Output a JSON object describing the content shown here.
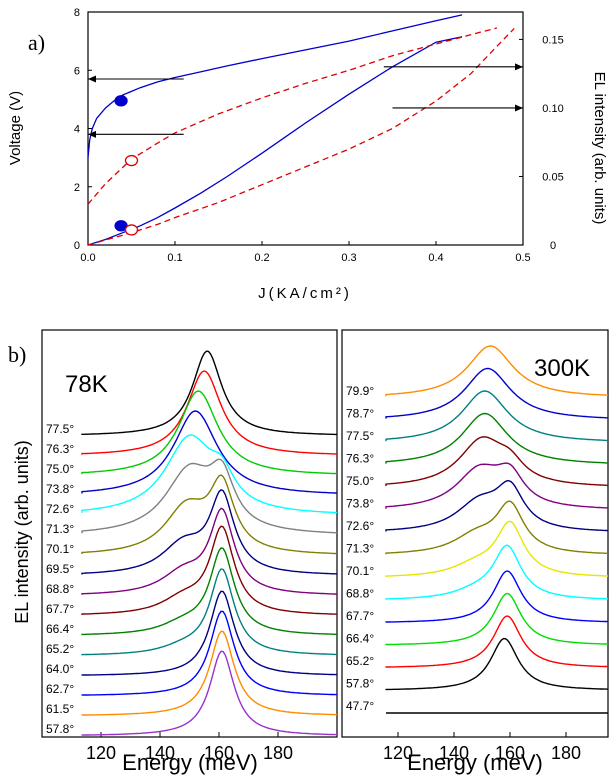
{
  "figure": {
    "panel_a_label": "a)",
    "panel_b_label": "b)"
  },
  "chart_data": [
    {
      "type": "line",
      "panel": "a",
      "xlabel": "J(KA/cm²)",
      "ylabel": "Voltage (V)",
      "y2label": "EL intensity (arb. units)",
      "xlim": [
        0,
        0.5
      ],
      "ylim": [
        0,
        8
      ],
      "y2lim": [
        0,
        0.17
      ],
      "xticks": [
        "0.0",
        "0.1",
        "0.2",
        "0.3",
        "0.4",
        "0.5"
      ],
      "yticks": [
        "0",
        "2",
        "4",
        "6",
        "8"
      ],
      "y2ticks": [
        "0",
        "0.05",
        "0.10",
        "0.15"
      ],
      "grid": false,
      "legend": "none",
      "series": [
        {
          "axis": "left",
          "color": "#0000cc",
          "dash": "solid",
          "x": [
            0,
            0.002,
            0.005,
            0.01,
            0.02,
            0.03,
            0.04,
            0.06,
            0.08,
            0.1,
            0.13,
            0.16,
            0.2,
            0.25,
            0.3,
            0.35,
            0.4,
            0.43
          ],
          "y": [
            3.0,
            3.6,
            4.0,
            4.35,
            4.7,
            4.95,
            5.15,
            5.4,
            5.6,
            5.75,
            5.95,
            6.15,
            6.4,
            6.7,
            7.0,
            7.35,
            7.7,
            7.9
          ]
        },
        {
          "axis": "right",
          "color": "#0000cc",
          "dash": "solid",
          "x": [
            0,
            0.02,
            0.04,
            0.06,
            0.08,
            0.1,
            0.13,
            0.16,
            0.2,
            0.25,
            0.3,
            0.35,
            0.4,
            0.43
          ],
          "y": [
            0.0,
            0.004,
            0.009,
            0.014,
            0.02,
            0.027,
            0.038,
            0.05,
            0.067,
            0.089,
            0.11,
            0.13,
            0.148,
            0.152
          ]
        },
        {
          "axis": "left",
          "color": "#dd0000",
          "dash": "dashed",
          "x": [
            0,
            0.02,
            0.05,
            0.08,
            0.1,
            0.15,
            0.2,
            0.25,
            0.3,
            0.35,
            0.4,
            0.45,
            0.47
          ],
          "y": [
            1.4,
            2.1,
            2.95,
            3.5,
            3.85,
            4.5,
            5.05,
            5.55,
            6.0,
            6.5,
            6.9,
            7.3,
            7.45
          ]
        },
        {
          "axis": "right",
          "color": "#dd0000",
          "dash": "dashed",
          "x": [
            0,
            0.05,
            0.08,
            0.1,
            0.15,
            0.2,
            0.25,
            0.3,
            0.35,
            0.4,
            0.44,
            0.47,
            0.49
          ],
          "y": [
            0.0,
            0.009,
            0.015,
            0.02,
            0.031,
            0.044,
            0.057,
            0.07,
            0.085,
            0.105,
            0.125,
            0.145,
            0.158
          ]
        }
      ],
      "markers": [
        {
          "x": 0.038,
          "y": 4.95,
          "color": "#0000cc",
          "filled": true,
          "axis": "left"
        },
        {
          "x": 0.038,
          "y": 0.014,
          "color": "#0000cc",
          "filled": true,
          "axis": "right"
        },
        {
          "x": 0.05,
          "y": 2.9,
          "color": "#dd0000",
          "filled": false,
          "axis": "left"
        },
        {
          "x": 0.05,
          "y": 0.011,
          "color": "#dd0000",
          "filled": false,
          "axis": "right"
        }
      ],
      "arrows": [
        {
          "x_from": 0.11,
          "x_to": 0.0,
          "y": 5.7,
          "axis": "left"
        },
        {
          "x_from": 0.11,
          "x_to": 0.0,
          "y": 3.8,
          "axis": "left"
        },
        {
          "x_from": 0.34,
          "x_to": 0.5,
          "y": 0.13,
          "axis": "right"
        },
        {
          "x_from": 0.35,
          "x_to": 0.5,
          "y": 0.1,
          "axis": "right"
        }
      ]
    },
    {
      "type": "line",
      "panel": "b-left",
      "title": "78K",
      "xlabel": "Energy (meV)",
      "ylabel": "EL intensity (arb. units)",
      "xlim": [
        100,
        200
      ],
      "xticks": [
        "120",
        "140",
        "160",
        "180"
      ],
      "grid": false,
      "legend": "none",
      "curve_type": "stacked spectra (top to bottom)",
      "series": [
        {
          "name": "77.5°",
          "color": "#000000",
          "peaks": [
            {
              "e": 156,
              "a": 1.0,
              "w": 6
            }
          ]
        },
        {
          "name": "76.3°",
          "color": "#ff0000",
          "peaks": [
            {
              "e": 155,
              "a": 1.0,
              "w": 7
            }
          ]
        },
        {
          "name": "75.0°",
          "color": "#00cc00",
          "peaks": [
            {
              "e": 153,
              "a": 1.0,
              "w": 8
            }
          ]
        },
        {
          "name": "73.8°",
          "color": "#0000cc",
          "peaks": [
            {
              "e": 152,
              "a": 1.0,
              "w": 9
            }
          ]
        },
        {
          "name": "72.6°",
          "color": "#00ffff",
          "peaks": [
            {
              "e": 150,
              "a": 0.9,
              "w": 10
            },
            {
              "e": 161,
              "a": 0.3,
              "w": 5
            }
          ]
        },
        {
          "name": "71.3°",
          "color": "#808080",
          "peaks": [
            {
              "e": 150,
              "a": 0.75,
              "w": 10
            },
            {
              "e": 161,
              "a": 0.55,
              "w": 5
            }
          ]
        },
        {
          "name": "70.1°",
          "color": "#808000",
          "peaks": [
            {
              "e": 149,
              "a": 0.55,
              "w": 9
            },
            {
              "e": 161,
              "a": 0.75,
              "w": 5
            }
          ]
        },
        {
          "name": "69.5°",
          "color": "#000080",
          "peaks": [
            {
              "e": 148,
              "a": 0.35,
              "w": 9
            },
            {
              "e": 161,
              "a": 0.9,
              "w": 5
            }
          ]
        },
        {
          "name": "68.8°",
          "color": "#800080",
          "peaks": [
            {
              "e": 148,
              "a": 0.25,
              "w": 9
            },
            {
              "e": 161,
              "a": 0.95,
              "w": 5
            }
          ]
        },
        {
          "name": "67.7°",
          "color": "#800000",
          "peaks": [
            {
              "e": 148,
              "a": 0.18,
              "w": 9
            },
            {
              "e": 161,
              "a": 1.0,
              "w": 5
            }
          ]
        },
        {
          "name": "66.4°",
          "color": "#008000",
          "peaks": [
            {
              "e": 148,
              "a": 0.12,
              "w": 9
            },
            {
              "e": 161,
              "a": 1.0,
              "w": 5
            }
          ]
        },
        {
          "name": "65.2°",
          "color": "#008080",
          "peaks": [
            {
              "e": 148,
              "a": 0.08,
              "w": 9
            },
            {
              "e": 161,
              "a": 1.0,
              "w": 5
            }
          ]
        },
        {
          "name": "64.0°",
          "color": "#000080",
          "peaks": [
            {
              "e": 161,
              "a": 1.0,
              "w": 5
            }
          ]
        },
        {
          "name": "62.7°",
          "color": "#0000ff",
          "peaks": [
            {
              "e": 161,
              "a": 1.0,
              "w": 5
            }
          ]
        },
        {
          "name": "61.5°",
          "color": "#ff8c00",
          "peaks": [
            {
              "e": 161,
              "a": 1.0,
              "w": 5
            }
          ]
        },
        {
          "name": "57.8°",
          "color": "#9932cc",
          "peaks": [
            {
              "e": 161,
              "a": 1.0,
              "w": 5
            }
          ]
        }
      ]
    },
    {
      "type": "line",
      "panel": "b-right",
      "title": "300K",
      "xlabel": "Energy (meV)",
      "xlim": [
        100,
        195
      ],
      "xticks": [
        "120",
        "140",
        "160",
        "180"
      ],
      "grid": false,
      "legend": "none",
      "curve_type": "stacked spectra (top to bottom)",
      "series": [
        {
          "name": "79.9°",
          "color": "#ff8c00",
          "peaks": [
            {
              "e": 153,
              "a": 1.0,
              "w": 10
            }
          ]
        },
        {
          "name": "78.7°",
          "color": "#0000cc",
          "peaks": [
            {
              "e": 152,
              "a": 1.0,
              "w": 10
            }
          ]
        },
        {
          "name": "77.5°",
          "color": "#008080",
          "peaks": [
            {
              "e": 151,
              "a": 1.0,
              "w": 10
            }
          ]
        },
        {
          "name": "76.3°",
          "color": "#008000",
          "peaks": [
            {
              "e": 151,
              "a": 1.0,
              "w": 10
            }
          ]
        },
        {
          "name": "75.0°",
          "color": "#800000",
          "peaks": [
            {
              "e": 150,
              "a": 0.9,
              "w": 10
            },
            {
              "e": 160,
              "a": 0.3,
              "w": 6
            }
          ]
        },
        {
          "name": "73.8°",
          "color": "#800080",
          "peaks": [
            {
              "e": 149,
              "a": 0.75,
              "w": 10
            },
            {
              "e": 160,
              "a": 0.55,
              "w": 6
            }
          ]
        },
        {
          "name": "72.6°",
          "color": "#000080",
          "peaks": [
            {
              "e": 149,
              "a": 0.55,
              "w": 10
            },
            {
              "e": 160,
              "a": 0.75,
              "w": 6
            }
          ]
        },
        {
          "name": "71.3°",
          "color": "#808000",
          "peaks": [
            {
              "e": 148,
              "a": 0.35,
              "w": 10
            },
            {
              "e": 160,
              "a": 0.9,
              "w": 6
            }
          ]
        },
        {
          "name": "70.1°",
          "color": "#e6e600",
          "peaks": [
            {
              "e": 148,
              "a": 0.22,
              "w": 10
            },
            {
              "e": 160,
              "a": 1.0,
              "w": 6
            }
          ]
        },
        {
          "name": "68.8°",
          "color": "#00ffff",
          "peaks": [
            {
              "e": 148,
              "a": 0.14,
              "w": 10
            },
            {
              "e": 159,
              "a": 1.0,
              "w": 6
            }
          ]
        },
        {
          "name": "67.7°",
          "color": "#0000ff",
          "peaks": [
            {
              "e": 159,
              "a": 1.0,
              "w": 6
            }
          ]
        },
        {
          "name": "66.4°",
          "color": "#00dd00",
          "peaks": [
            {
              "e": 159,
              "a": 1.0,
              "w": 6
            }
          ]
        },
        {
          "name": "65.2°",
          "color": "#ff0000",
          "peaks": [
            {
              "e": 159,
              "a": 1.0,
              "w": 6
            }
          ]
        },
        {
          "name": "57.8°",
          "color": "#000000",
          "peaks": [
            {
              "e": 158,
              "a": 1.0,
              "w": 6
            }
          ]
        },
        {
          "name": "47.7°",
          "color": "#000000",
          "peaks": []
        }
      ]
    }
  ]
}
